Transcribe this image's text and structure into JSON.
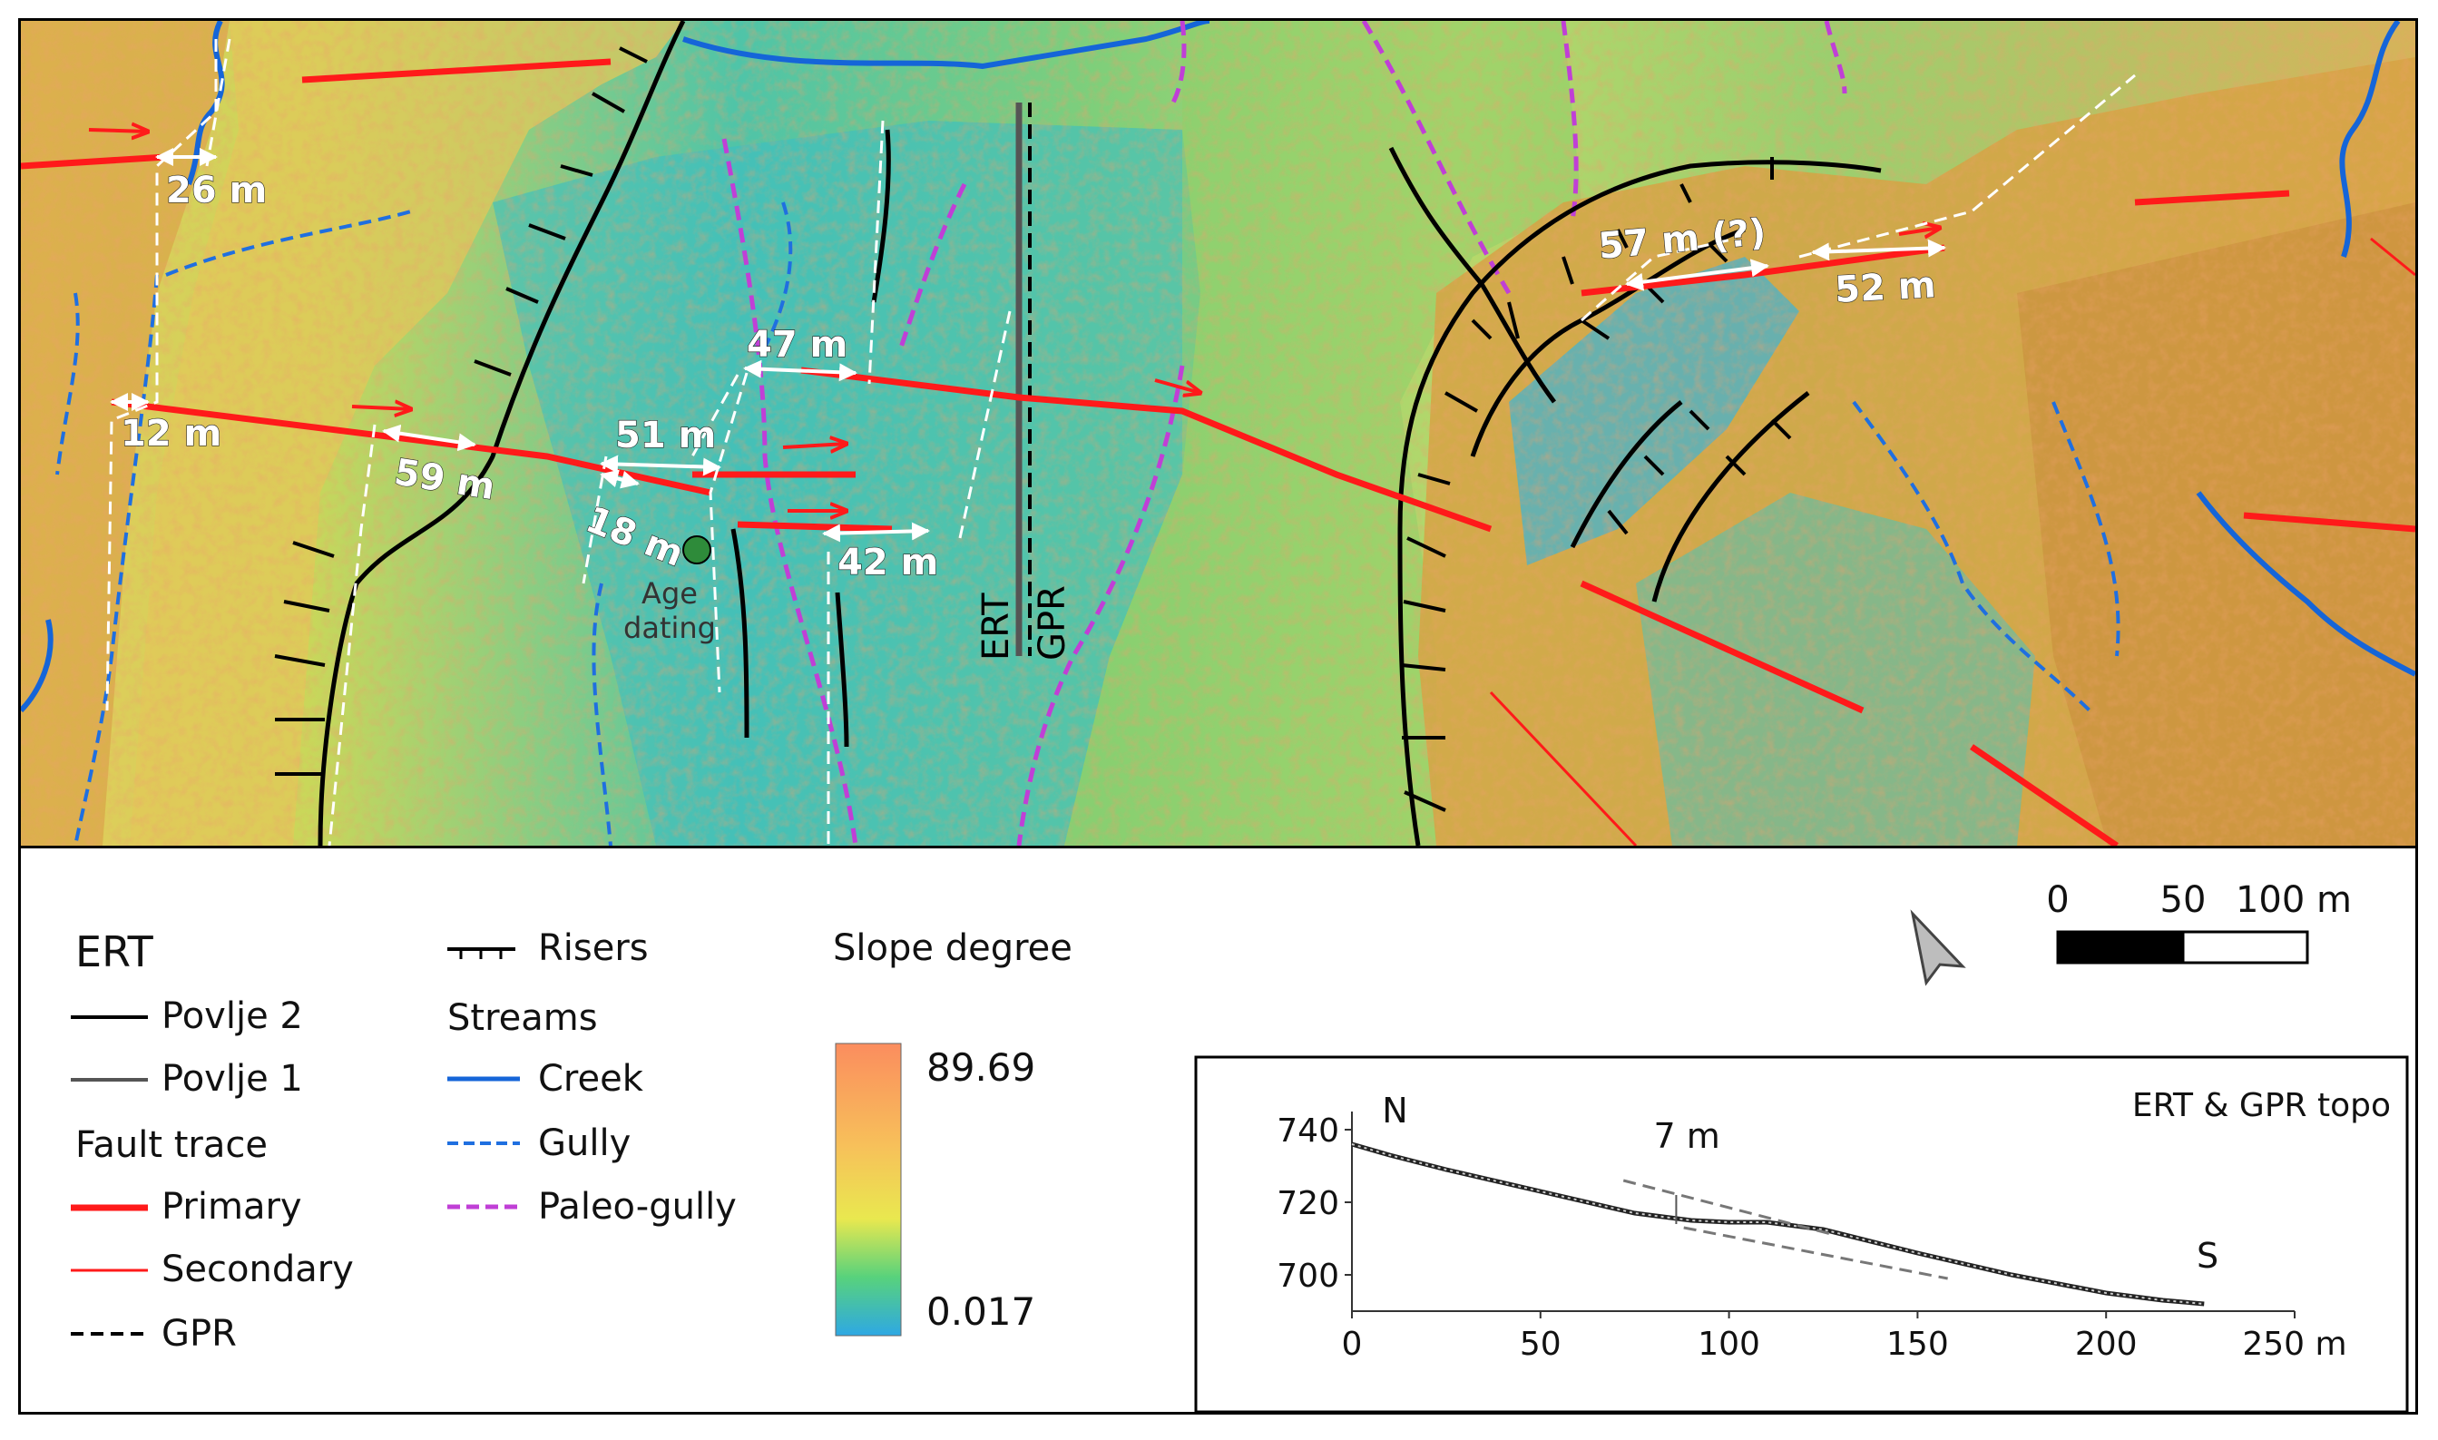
{
  "map": {
    "offsets": [
      "26 m",
      "12 m",
      "59 m",
      "51 m",
      "18 m",
      "47 m",
      "42 m",
      "57 m (?)",
      "52 m"
    ],
    "site_labels": {
      "age_dating_line1": "Age",
      "age_dating_line2": "dating",
      "ert": "ERT",
      "gpr": "GPR"
    }
  },
  "legend": {
    "ert_heading": "ERT",
    "povlje2": "Povlje 2",
    "povlje1": "Povlje 1",
    "fault_heading": "Fault trace",
    "primary": "Primary",
    "secondary": "Secondary",
    "gpr": "GPR",
    "risers": "Risers",
    "streams_heading": "Streams",
    "creek": "Creek",
    "gully": "Gully",
    "paleo_gully": "Paleo-gully",
    "slope_title": "Slope degree",
    "slope_max": "89.69",
    "slope_min": "0.017"
  },
  "scale_bar": {
    "ticks": [
      "0",
      "50",
      "100 m"
    ]
  },
  "colors": {
    "primary_fault": "#ff1a1a",
    "creek": "#1565d8",
    "gully": "#1f6fe0",
    "paleo_gully": "#c03fd6",
    "ert": "#000000",
    "povlje1": "#555555"
  },
  "inset": {
    "title": "ERT & GPR topo",
    "north_label": "N",
    "south_label": "S",
    "offset_label": "7 m",
    "y_ticks": [
      "740",
      "720",
      "700"
    ],
    "x_ticks": [
      "0",
      "50",
      "100",
      "150",
      "200",
      "250 m"
    ]
  },
  "chart_data": {
    "type": "line",
    "title": "ERT & GPR topo",
    "xlabel": "",
    "ylabel": "",
    "xlim": [
      0,
      250
    ],
    "ylim": [
      690,
      745
    ],
    "series": [
      {
        "x": [
          0,
          10,
          25,
          50,
          75,
          90,
          100,
          110,
          125,
          150,
          175,
          200,
          215,
          226
        ],
        "values": [
          736,
          733,
          729,
          723,
          717,
          715,
          714.5,
          714.5,
          712.5,
          706,
          700,
          695,
          693,
          692
        ]
      }
    ]
  }
}
